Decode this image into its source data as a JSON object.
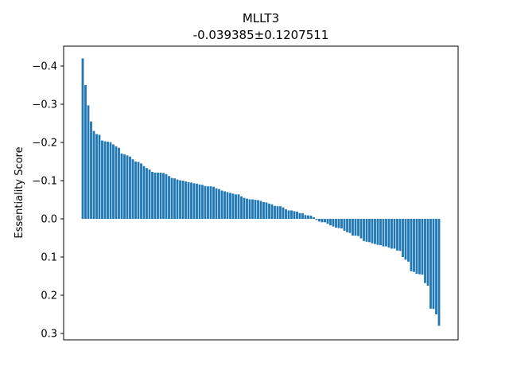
{
  "chart_data": {
    "type": "bar",
    "title": "MLLT3",
    "subtitle": "-0.039385±0.1207511",
    "xlabel": "",
    "ylabel": "Essentiality Score",
    "y_inverted": true,
    "ylim": [
      0.32,
      -0.44
    ],
    "yticks": [
      -0.4,
      -0.3,
      -0.2,
      -0.1,
      0.0,
      0.1,
      0.2,
      0.3
    ],
    "ytick_labels": [
      "−0.4",
      "−0.3",
      "−0.2",
      "−0.1",
      "0.0",
      "0.1",
      "0.2",
      "0.3"
    ],
    "x_ticks_visible": false,
    "grid": false,
    "bar_color": "#1f77b4",
    "series": [
      {
        "values": [
          -0.42,
          -0.35,
          -0.297,
          -0.255,
          -0.23,
          -0.222,
          -0.22,
          -0.205,
          -0.203,
          -0.202,
          -0.2,
          -0.195,
          -0.19,
          -0.186,
          -0.171,
          -0.169,
          -0.166,
          -0.163,
          -0.156,
          -0.15,
          -0.149,
          -0.145,
          -0.138,
          -0.133,
          -0.129,
          -0.123,
          -0.121,
          -0.121,
          -0.121,
          -0.12,
          -0.117,
          -0.112,
          -0.107,
          -0.106,
          -0.103,
          -0.101,
          -0.1,
          -0.098,
          -0.096,
          -0.095,
          -0.093,
          -0.092,
          -0.09,
          -0.089,
          -0.086,
          -0.085,
          -0.085,
          -0.084,
          -0.08,
          -0.078,
          -0.074,
          -0.072,
          -0.07,
          -0.068,
          -0.066,
          -0.064,
          -0.064,
          -0.059,
          -0.055,
          -0.053,
          -0.051,
          -0.051,
          -0.05,
          -0.049,
          -0.047,
          -0.044,
          -0.043,
          -0.04,
          -0.038,
          -0.034,
          -0.033,
          -0.033,
          -0.03,
          -0.025,
          -0.022,
          -0.022,
          -0.02,
          -0.019,
          -0.015,
          -0.015,
          -0.01,
          -0.009,
          -0.008,
          -0.004,
          0.003,
          0.007,
          0.009,
          0.009,
          0.013,
          0.017,
          0.02,
          0.023,
          0.024,
          0.025,
          0.031,
          0.035,
          0.037,
          0.044,
          0.044,
          0.045,
          0.051,
          0.058,
          0.06,
          0.061,
          0.064,
          0.066,
          0.068,
          0.069,
          0.072,
          0.072,
          0.075,
          0.078,
          0.078,
          0.083,
          0.084,
          0.1,
          0.107,
          0.112,
          0.137,
          0.139,
          0.144,
          0.145,
          0.146,
          0.168,
          0.175,
          0.235,
          0.236,
          0.25,
          0.28
        ]
      }
    ]
  }
}
